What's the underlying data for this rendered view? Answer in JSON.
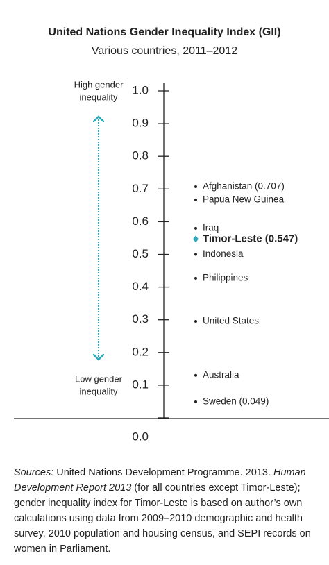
{
  "chart_data": {
    "type": "dot-axis",
    "title": "United Nations Gender Inequality Index (GII)",
    "subtitle": "Various countries, 2011–2012",
    "annotation_high": [
      "High gender",
      "inequality"
    ],
    "annotation_low": [
      "Low gender",
      "inequality"
    ],
    "categories": [
      "Afghanistan (0.707)",
      "Papua New Guinea",
      "Iraq",
      "Timor-Leste (0.547)",
      "Indonesia",
      "Philippines",
      "United States",
      "Australia",
      "Sweden (0.049)"
    ],
    "values": [
      0.707,
      0.667,
      0.58,
      0.547,
      0.5,
      0.427,
      0.295,
      0.13,
      0.049
    ],
    "color": "#222222",
    "highlight": 3,
    "highlight_color": "#2aa8b8",
    "ylim": [
      0,
      1
    ],
    "yticks": [
      {
        "value": 0,
        "label": "0.0"
      },
      0.1,
      0.2,
      0.3,
      0.4,
      0.5,
      0.6,
      0.7,
      0.8,
      0.9,
      {
        "value": 1,
        "label": "1.0"
      }
    ]
  },
  "source": {
    "label": "Sources:",
    "text1": " United Nations Development Programme. 2013. ",
    "report": "Human Development Report 2013",
    "text2": " (for all countries except Timor-Leste); gender inequality index for Timor-Leste is based on author’s own calculations using data from 2009–2010 demographic and health survey, 2010 population and housing census, and SEPI records on women in Parliament."
  }
}
